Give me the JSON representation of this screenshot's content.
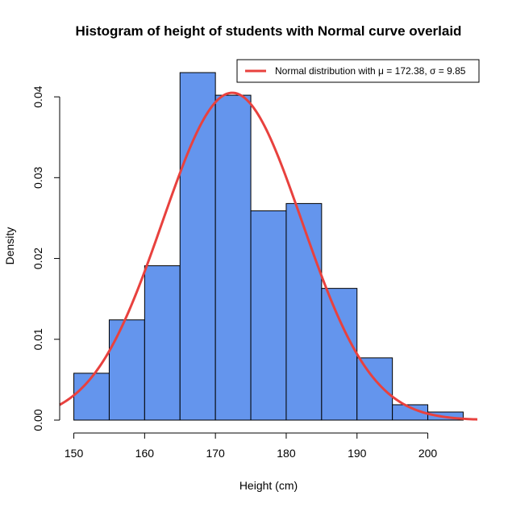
{
  "chart_data": {
    "type": "bar",
    "title": "Histogram of height of students with Normal curve overlaid",
    "xlabel": "Height (cm)",
    "ylabel": "Density",
    "xlim": [
      148,
      207
    ],
    "ylim": [
      0,
      0.0445
    ],
    "x_ticks": [
      150,
      160,
      170,
      180,
      190,
      200
    ],
    "y_ticks": [
      0.0,
      0.01,
      0.02,
      0.03,
      0.04
    ],
    "y_tick_labels": [
      "0.00",
      "0.01",
      "0.02",
      "0.03",
      "0.04"
    ],
    "bins": [
      {
        "start": 150,
        "end": 155,
        "density": 0.0058
      },
      {
        "start": 155,
        "end": 160,
        "density": 0.0124
      },
      {
        "start": 160,
        "end": 165,
        "density": 0.0191
      },
      {
        "start": 165,
        "end": 170,
        "density": 0.043
      },
      {
        "start": 170,
        "end": 175,
        "density": 0.0402
      },
      {
        "start": 175,
        "end": 180,
        "density": 0.0259
      },
      {
        "start": 180,
        "end": 185,
        "density": 0.0268
      },
      {
        "start": 185,
        "end": 190,
        "density": 0.0163
      },
      {
        "start": 190,
        "end": 195,
        "density": 0.0077
      },
      {
        "start": 195,
        "end": 200,
        "density": 0.0019
      },
      {
        "start": 200,
        "end": 205,
        "density": 0.001
      }
    ],
    "curve": {
      "type": "normal",
      "mu": 172.38,
      "sigma": 9.85,
      "x_range": [
        148,
        207
      ]
    },
    "bar_color": "#6495ED",
    "curve_color": "#E8413E",
    "grid": false,
    "legend_position": "top-right",
    "legend_label_prefix": "Normal distribution with ",
    "legend_mu_symbol": "μ",
    "legend_mu_text": " = 172.38, ",
    "legend_sigma_symbol": "σ",
    "legend_sigma_text": " = 9.85"
  }
}
